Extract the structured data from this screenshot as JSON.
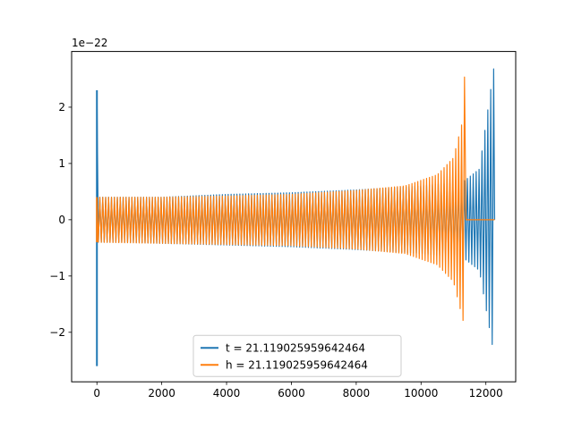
{
  "chart_data": {
    "type": "line",
    "title": "",
    "xlabel": "",
    "ylabel": "",
    "offset_text": "1e−22",
    "xlim": [
      -780,
      12920
    ],
    "ylim": [
      -2.88,
      2.99
    ],
    "xticks": [
      0,
      2000,
      4000,
      6000,
      8000,
      10000,
      12000
    ],
    "xtick_labels": [
      "0",
      "2000",
      "4000",
      "6000",
      "8000",
      "10000",
      "12000"
    ],
    "yticks": [
      -2,
      -1,
      0,
      1,
      2
    ],
    "ytick_labels": [
      "−2",
      "−1",
      "0",
      "1",
      "2"
    ],
    "grid": false,
    "legend": {
      "placement": "lower center",
      "entries": [
        "t = 21.119025959642464",
        "h = 21.119025959642464"
      ]
    },
    "colors": {
      "t": "#1f77b4",
      "h": "#ff7f0e",
      "axes": "#000000",
      "legend_border": "#cccccc"
    },
    "series": [
      {
        "name": "t = 21.119025959642464",
        "color": "#1f77b4",
        "description_points": {
          "x": [
            0,
            0,
            900,
            2000,
            4000,
            6000,
            8000,
            10000,
            11300,
            11400,
            11800,
            12250,
            12250,
            12270
          ],
          "upper_envelope": [
            2.3,
            0.4,
            0.4,
            0.4,
            0.45,
            0.48,
            0.53,
            0.6,
            0.68,
            0.72,
            0.9,
            2.72,
            0.0,
            0.0
          ],
          "lower_envelope": [
            -2.6,
            -0.4,
            -0.4,
            -0.42,
            -0.45,
            -0.48,
            -0.53,
            -0.6,
            -0.68,
            -0.72,
            -0.9,
            -2.4,
            0.0,
            0.0
          ]
        }
      },
      {
        "name": "h = 21.119025959642464",
        "color": "#ff7f0e",
        "description_points": {
          "x": [
            0,
            0,
            2000,
            4000,
            6000,
            8000,
            9500,
            10500,
            11000,
            11300,
            11350,
            11360,
            12270
          ],
          "upper_envelope": [
            0.4,
            0.4,
            0.4,
            0.42,
            0.45,
            0.52,
            0.6,
            0.8,
            1.1,
            1.8,
            2.72,
            0.0,
            0.0
          ],
          "lower_envelope": [
            -0.4,
            -0.4,
            -0.42,
            -0.44,
            -0.46,
            -0.52,
            -0.6,
            -0.8,
            -1.1,
            -1.8,
            -2.6,
            0.0,
            0.0
          ]
        }
      }
    ]
  }
}
